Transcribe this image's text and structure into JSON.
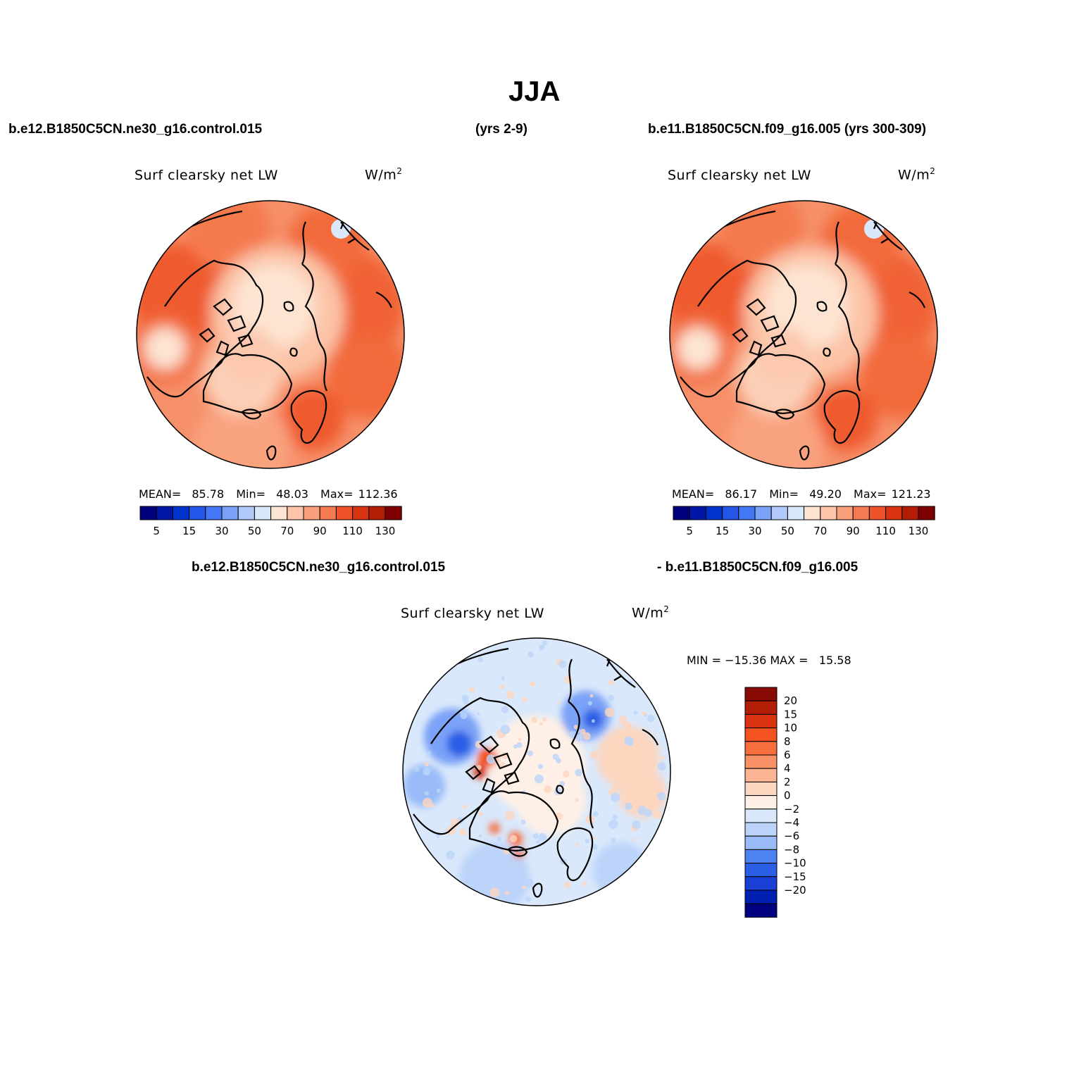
{
  "title": "JJA",
  "headers": {
    "case1": "b.e12.B1850C5CN.ne30_g16.control.015",
    "case1_years": "(yrs 2-9)",
    "case2": "b.e11.B1850C5CN.f09_g16.005 (yrs 300-309)",
    "diff_left": "b.e12.B1850C5CN.ne30_g16.control.015",
    "diff_right": "- b.e11.B1850C5CN.f09_g16.005"
  },
  "panels": [
    {
      "variable": "Surf clearsky net LW",
      "units_base": "W/m",
      "units_exp": "2",
      "stats": {
        "mean_label": "MEAN=",
        "mean": "85.78",
        "min_label": "Min=",
        "min": "48.03",
        "max_label": "Max=",
        "max": "112.36"
      }
    },
    {
      "variable": "Surf clearsky net LW",
      "units_base": "W/m",
      "units_exp": "2",
      "stats": {
        "mean_label": "MEAN=",
        "mean": "86.17",
        "min_label": "Min=",
        "min": "49.20",
        "max_label": "Max=",
        "max": "121.23"
      }
    }
  ],
  "diff_panel": {
    "variable": "Surf clearsky net LW",
    "units_base": "W/m",
    "units_exp": "2",
    "minmax": "MIN = −15.36 MAX =   15.58"
  },
  "colorbar_h": {
    "colors": [
      "#00007f",
      "#0016a6",
      "#0033cc",
      "#2255e8",
      "#4477f5",
      "#7aa2f7",
      "#b0c9f8",
      "#d9e8fb",
      "#fde4d2",
      "#fcc4a8",
      "#f9a07c",
      "#f67a51",
      "#ef5128",
      "#d9330f",
      "#b31d05",
      "#7f0000"
    ],
    "tick_labels": [
      "5",
      "15",
      "30",
      "50",
      "70",
      "90",
      "110",
      "130"
    ]
  },
  "colorbar_v": {
    "colors": [
      "#8a0a05",
      "#b31d05",
      "#d9330f",
      "#f55222",
      "#f76e3d",
      "#f99166",
      "#fcb592",
      "#fcd6bf",
      "#fef0e6",
      "#d9e8fb",
      "#bcd4fa",
      "#99bbf8",
      "#4d82f2",
      "#2b5fe6",
      "#1a3fd6",
      "#0020b3",
      "#000080"
    ],
    "tick_labels": [
      "20",
      "15",
      "10",
      "8",
      "6",
      "4",
      "2",
      "0",
      "−2",
      "−4",
      "−6",
      "−8",
      "−10",
      "−15",
      "−20"
    ]
  }
}
